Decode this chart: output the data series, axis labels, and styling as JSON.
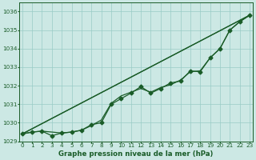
{
  "xlabel": "Graphe pression niveau de la mer (hPa)",
  "ylim": [
    1029,
    1036.5
  ],
  "xlim": [
    -0.3,
    23.3
  ],
  "yticks": [
    1029,
    1030,
    1031,
    1032,
    1033,
    1034,
    1035,
    1036
  ],
  "xticks": [
    0,
    1,
    2,
    3,
    4,
    5,
    6,
    7,
    8,
    9,
    10,
    11,
    12,
    13,
    14,
    15,
    16,
    17,
    18,
    19,
    20,
    21,
    22,
    23
  ],
  "background_color": "#cce8e4",
  "grid_color": "#99ccc6",
  "line_color": "#1a5c28",
  "straight_lines": [
    [
      [
        0,
        23
      ],
      [
        1029.4,
        1035.8
      ]
    ],
    [
      [
        0,
        23
      ],
      [
        1029.4,
        1035.8
      ]
    ]
  ],
  "series_no_marker": [
    [
      1029.4,
      1029.5,
      1029.55,
      1029.5,
      1029.45,
      1029.5,
      1029.6,
      1029.85,
      1030.15,
      1031.05,
      1031.45,
      1031.65,
      1031.85,
      1031.65,
      1031.9,
      1032.05,
      1032.3,
      1032.75,
      1032.8,
      1033.5,
      1034.0,
      1035.0,
      1035.45,
      1035.8
    ]
  ],
  "series_with_marker": [
    [
      1029.4,
      1029.5,
      1029.55,
      1029.3,
      1029.45,
      1029.5,
      1029.6,
      1029.9,
      1030.0,
      1031.0,
      1031.3,
      1031.6,
      1031.95,
      1031.6,
      1031.85,
      1032.15,
      1032.25,
      1032.8,
      1032.75,
      1033.5,
      1034.0,
      1035.0,
      1035.45,
      1035.8
    ]
  ],
  "line_width": 0.9,
  "marker_size": 2.5,
  "tick_fontsize": 5.2,
  "label_fontsize": 6.2,
  "label_fontweight": "bold"
}
